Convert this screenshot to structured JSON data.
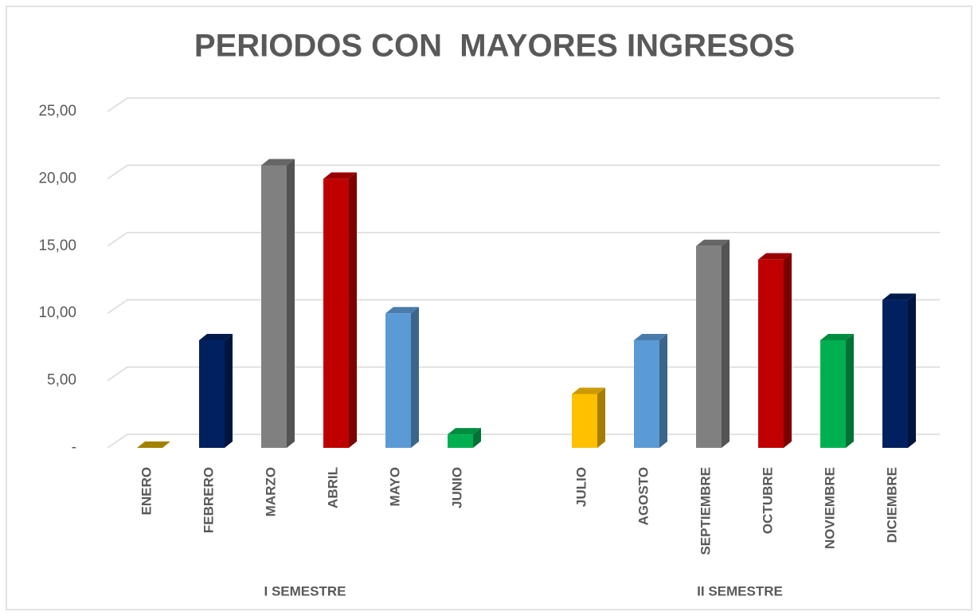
{
  "chart_data": {
    "type": "bar3d",
    "title": "PERIODOS CON  MAYORES INGRESOS",
    "groups": [
      {
        "name": "I SEMESTRE",
        "categories": [
          "ENERO",
          "FEBRERO",
          "MARZO",
          "ABRIL",
          "MAYO",
          "JUNIO"
        ],
        "values": [
          0,
          8,
          21,
          20,
          10,
          1
        ],
        "colors": [
          "#c9a000",
          "#002060",
          "#808080",
          "#c00000",
          "#5b9bd5",
          "#00b050"
        ]
      },
      {
        "name": "II SEMESTRE",
        "categories": [
          "JULIO",
          "AGOSTO",
          "SEPTIEMBRE",
          "OCTUBRE",
          "NOVIEMBRE",
          "DICIEMBRE"
        ],
        "values": [
          4,
          8,
          15,
          14,
          8,
          11
        ],
        "colors": [
          "#ffc000",
          "#5b9bd5",
          "#808080",
          "#c00000",
          "#00b050",
          "#002060"
        ]
      }
    ],
    "ylim": [
      0,
      25
    ],
    "yticks": [
      {
        "value": 0,
        "label": "-"
      },
      {
        "value": 5,
        "label": "5,00"
      },
      {
        "value": 10,
        "label": "10,00"
      },
      {
        "value": 15,
        "label": "15,00"
      },
      {
        "value": 20,
        "label": "20,00"
      },
      {
        "value": 25,
        "label": "25,00"
      }
    ],
    "grid": true
  }
}
